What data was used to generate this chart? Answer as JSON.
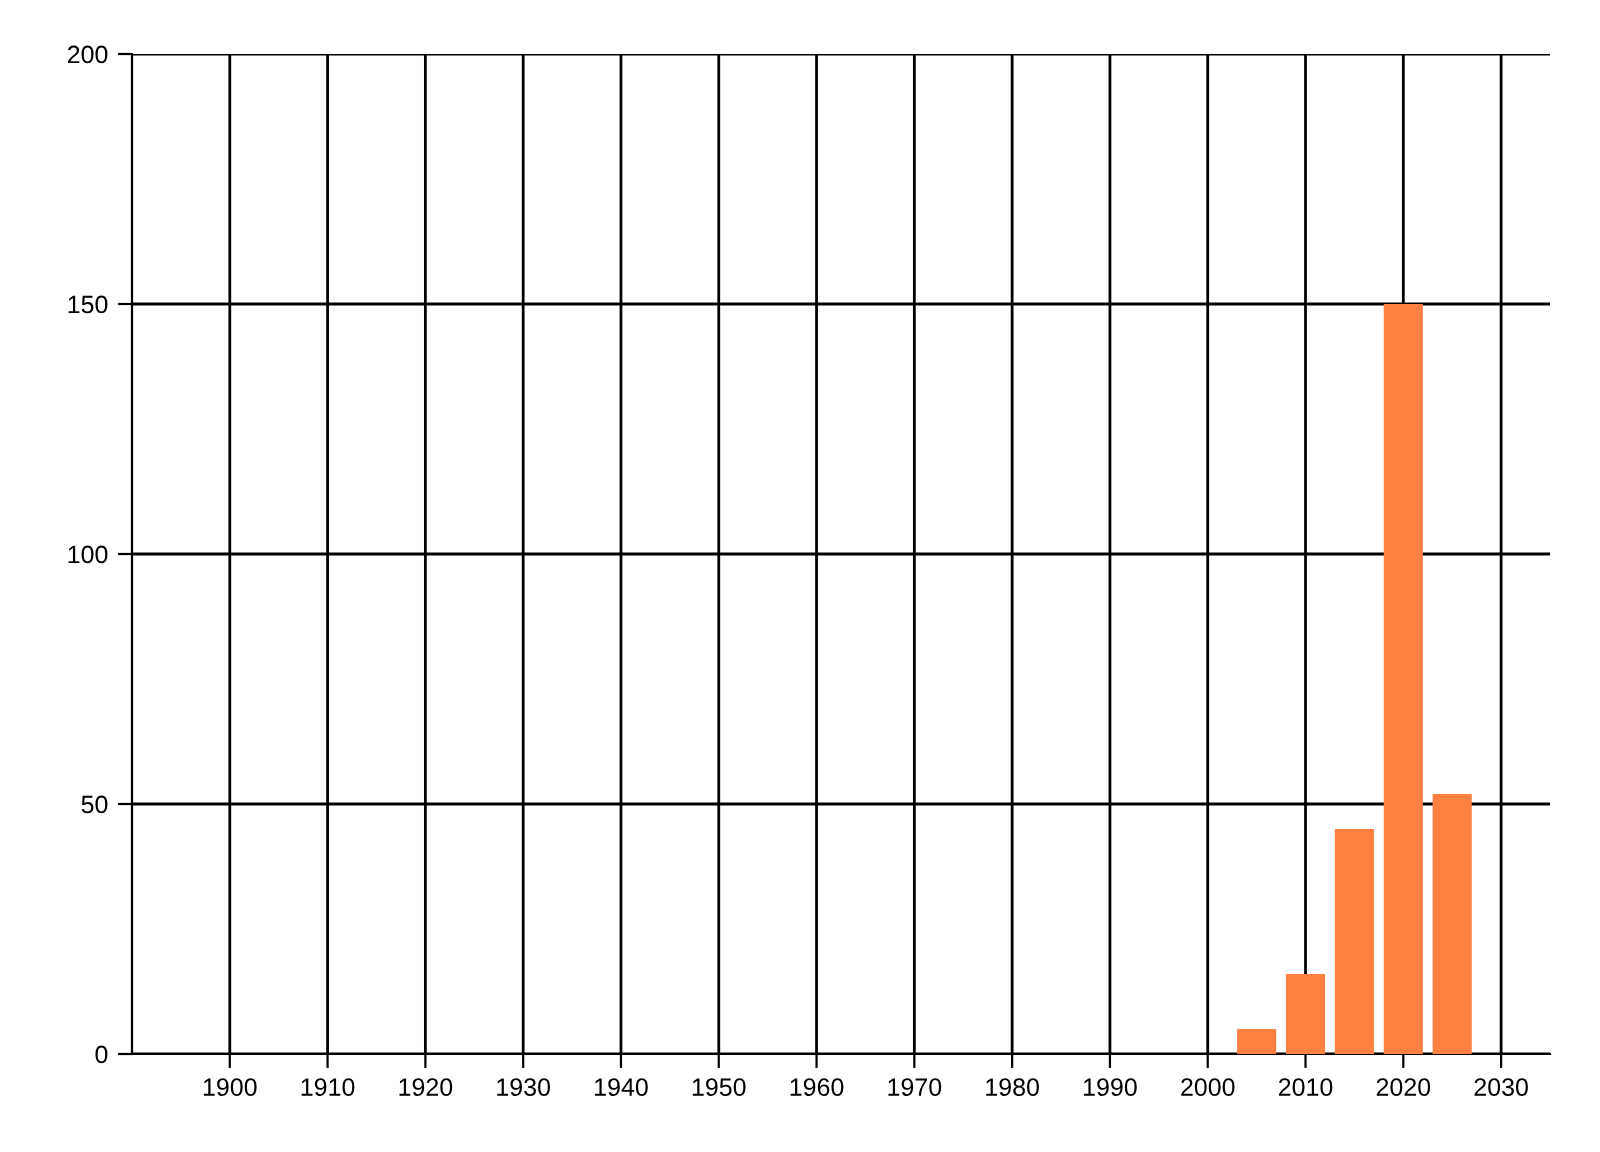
{
  "chart_data": {
    "type": "bar",
    "x": [
      2005,
      2010,
      2015,
      2020,
      2025
    ],
    "values": [
      5,
      16,
      45,
      150,
      52
    ],
    "color": "#ff8040",
    "xlim": [
      1890,
      2035
    ],
    "xticks": [
      1900,
      1910,
      1920,
      1930,
      1940,
      1950,
      1960,
      1970,
      1980,
      1990,
      2000,
      2010,
      2020,
      2030
    ],
    "ylim": [
      0,
      200
    ],
    "yticks": [
      0,
      50,
      100,
      150,
      200
    ],
    "grid": true
  }
}
